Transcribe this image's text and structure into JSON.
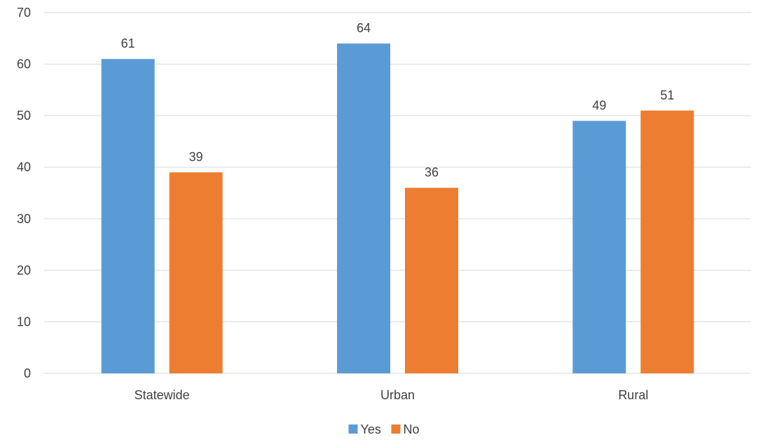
{
  "chart_data": {
    "type": "bar",
    "categories": [
      "Statewide",
      "Urban",
      "Rural"
    ],
    "series": [
      {
        "name": "Yes",
        "values": [
          61,
          64,
          49
        ],
        "color": "#5B9BD5"
      },
      {
        "name": "No",
        "values": [
          39,
          36,
          51
        ],
        "color": "#ED7D31"
      }
    ],
    "ylim": [
      0,
      70
    ],
    "yticks": [
      0,
      10,
      20,
      30,
      40,
      50,
      60,
      70
    ],
    "grid": true,
    "data_labels": true,
    "legend_position": "bottom",
    "colors": {
      "gridline": "#D9D9D9",
      "text": "#404040"
    }
  }
}
